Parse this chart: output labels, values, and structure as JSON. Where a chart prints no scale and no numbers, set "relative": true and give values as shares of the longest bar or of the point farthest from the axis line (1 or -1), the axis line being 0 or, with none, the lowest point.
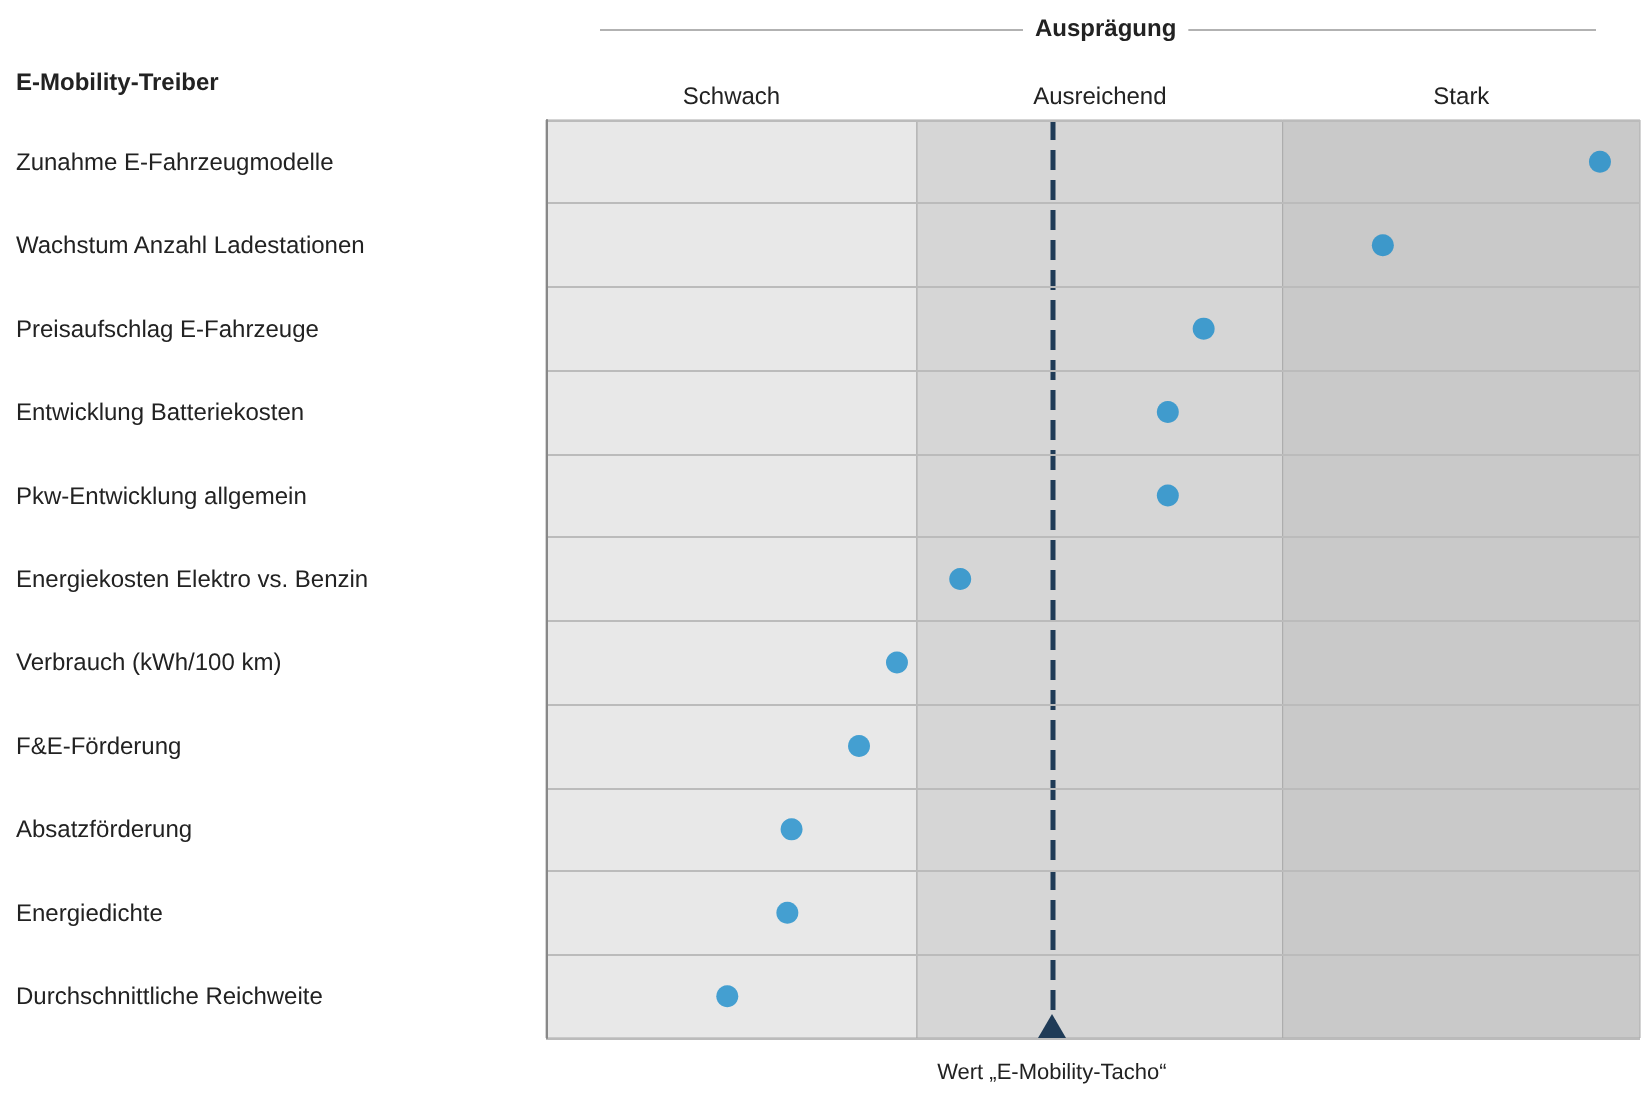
{
  "chart_data": {
    "type": "scatter",
    "orientation": "horizontal",
    "relative": true,
    "xlabel": "Ausprägung",
    "ylabel": "E-Mobility-Treiber",
    "marker": "circle",
    "grid": "y",
    "categories": [
      "Zunahme E-Fahrzeugmodelle",
      "Wachstum Anzahl Ladestationen",
      "Preisaufschlag E-Fahrzeuge",
      "Entwicklung Batteriekosten",
      "Pkw-Entwicklung allgemein",
      "Energiekosten Elektro vs. Benzin",
      "Verbrauch (kWh/100 km)",
      "F&E-Förderung",
      "Absatzförderung",
      "Energiedichte",
      "Durchschnittliche Reichweite"
    ],
    "series": [
      {
        "color": "#1a8ccb",
        "values": [
          1.0,
          0.794,
          0.624,
          0.59,
          0.59,
          0.393,
          0.333,
          0.297,
          0.233,
          0.229,
          0.172
        ]
      }
    ],
    "bands": [
      {
        "axis": "x",
        "from": 0,
        "to": 0.352,
        "label": "Schwach",
        "color": "#e8e8e8"
      },
      {
        "axis": "x",
        "from": 0.352,
        "to": 0.699,
        "label": "Ausreichend",
        "color": "#d6d6d6"
      },
      {
        "axis": "x",
        "from": 0.699,
        "to": 1.038,
        "label": "Stark",
        "color": "#c9c9c9"
      }
    ],
    "ref_lines": [
      {
        "axis": "x",
        "value": 0.48,
        "label": "Wert „E-Mobility-Tacho“",
        "color": "#1f3b57",
        "line_style": "dashed"
      }
    ]
  }
}
